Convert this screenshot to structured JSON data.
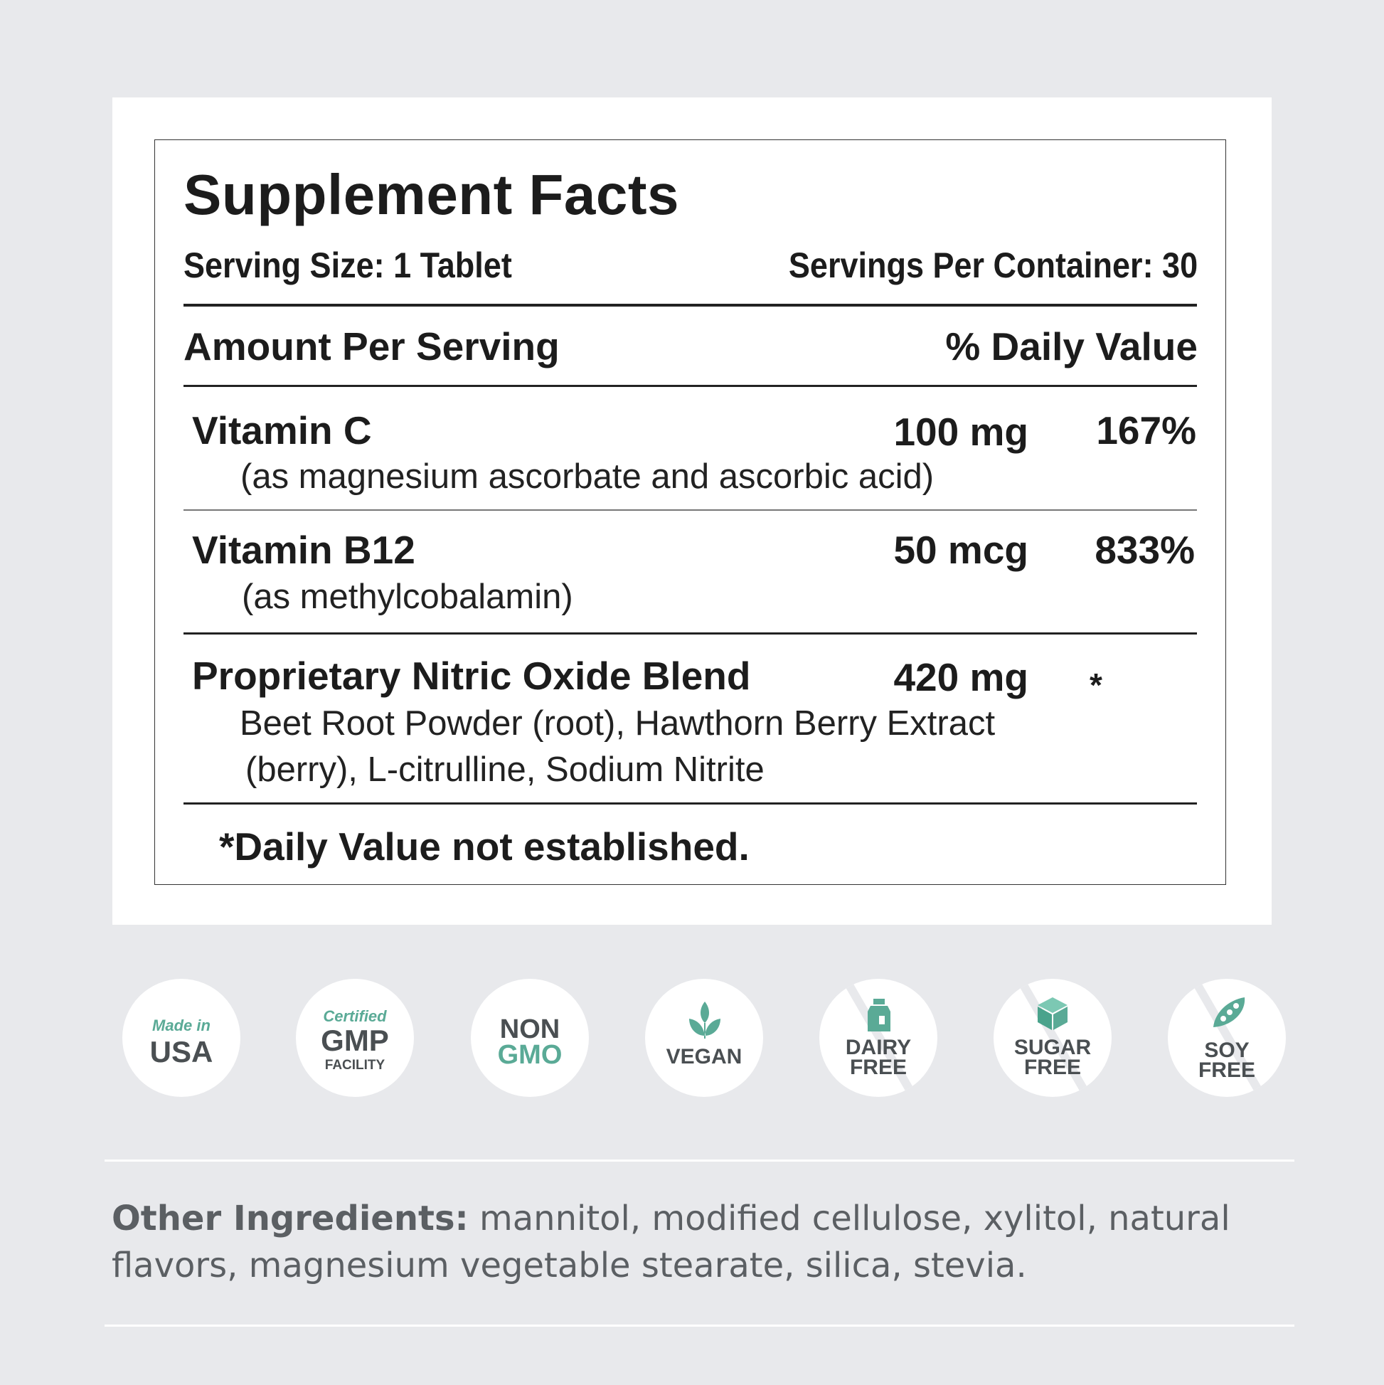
{
  "facts": {
    "title": "Supplement Facts",
    "serving_size": "Serving Size: 1 Tablet",
    "servings_per_container": "Servings Per Container: 30",
    "amount_header": "Amount Per Serving",
    "dv_header": "% Daily Value",
    "rows": [
      {
        "name": "Vitamin C",
        "detail": "(as magnesium ascorbate and ascorbic acid)",
        "amount": "100 mg",
        "dv": "167%"
      },
      {
        "name": "Vitamin B12",
        "detail": "(as methylcobalamin)",
        "amount": "50 mcg",
        "dv": "833%"
      },
      {
        "name": "Proprietary Nitric Oxide Blend",
        "detail_line1": "Beet Root Powder (root), Hawthorn Berry Extract",
        "detail_line2": "(berry), L-citrulline, Sodium Nitrite",
        "amount": "420 mg",
        "dv": "*"
      }
    ],
    "footnote": "*Daily Value not established."
  },
  "badges": [
    {
      "top": "Made in",
      "main": "USA"
    },
    {
      "top": "Certified",
      "main": "GMP",
      "bottom": "FACILITY"
    },
    {
      "top": "NON",
      "main": "GMO"
    },
    {
      "main": "VEGAN",
      "icon": "leaf-icon"
    },
    {
      "line1": "DAIRY",
      "line2": "FREE",
      "icon": "milk-bottle-icon"
    },
    {
      "line1": "SUGAR",
      "line2": "FREE",
      "icon": "sugar-cube-icon"
    },
    {
      "line1": "SOY",
      "line2": "FREE",
      "icon": "soy-pod-icon"
    }
  ],
  "other": {
    "label": "Other Ingredients:",
    "text": " mannitol, modified cellulose, xylitol, natural flavors, magnesium vegetable stearate, silica, stevia."
  },
  "colors": {
    "accent": "#5aaa96",
    "badge_text": "#4a4f52",
    "background": "#e8e9ec"
  }
}
